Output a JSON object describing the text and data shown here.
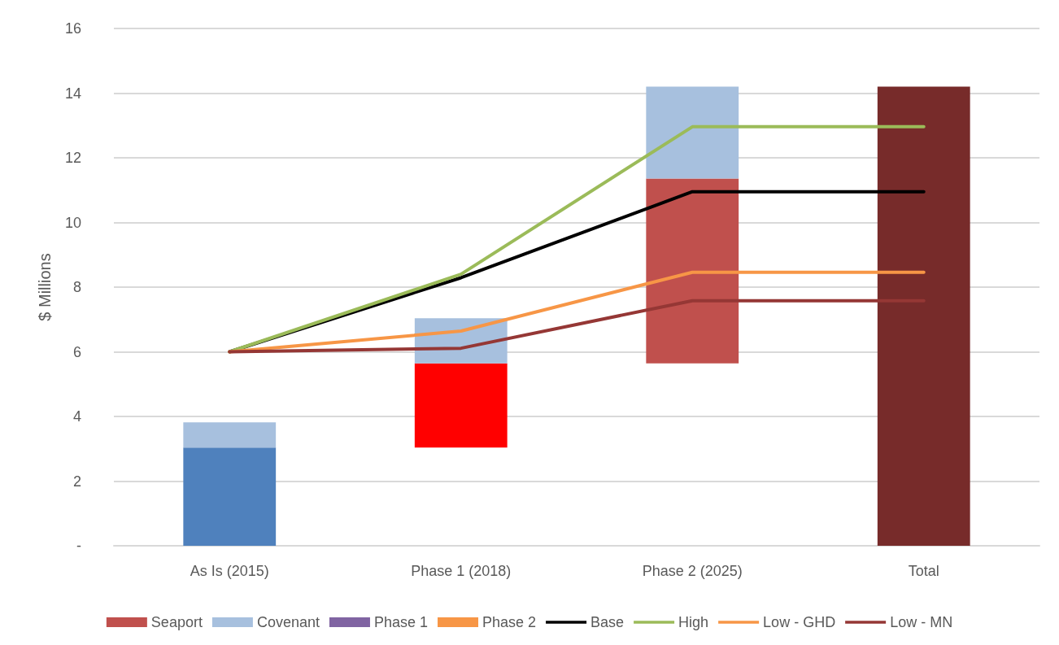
{
  "chart_data": {
    "type": "bar",
    "ylabel": "$ Millions",
    "categories": [
      "As Is (2015)",
      "Phase 1 (2018)",
      "Phase 2 (2025)",
      "Total"
    ],
    "ylim": [
      0,
      16
    ],
    "yticks": [
      {
        "value": 0,
        "label": "-"
      },
      2,
      4,
      6,
      8,
      10,
      12,
      14,
      16
    ],
    "grid": "y",
    "legend": "bottom",
    "marker": "none",
    "line_style": "solid",
    "series": [
      {
        "name": "Seaport",
        "type": "bar",
        "color": "#c0504d",
        "colors": [
          "#4f81bd",
          "#ff0000",
          "#c0504d",
          "#772b2a"
        ],
        "base": [
          0,
          3.04,
          5.64,
          0
        ],
        "values": [
          3.04,
          2.6,
          5.72,
          14.2
        ]
      },
      {
        "name": "Covenant",
        "type": "bar",
        "color": "#a7c0de",
        "base": [
          3.04,
          5.64,
          11.36,
          null
        ],
        "values": [
          0.78,
          1.4,
          2.84,
          null
        ]
      },
      {
        "name": "Phase 1",
        "type": "bar",
        "color": "#8064a2",
        "values": [
          null,
          null,
          null,
          null
        ]
      },
      {
        "name": "Phase 2",
        "type": "bar",
        "color": "#f79646",
        "values": [
          null,
          null,
          null,
          null
        ]
      },
      {
        "name": "Base",
        "type": "line",
        "color": "#000000",
        "values": [
          6,
          8.29,
          10.95,
          10.95
        ]
      },
      {
        "name": "High",
        "type": "line",
        "color": "#9bbb59",
        "values": [
          6,
          8.4,
          12.96,
          12.96
        ]
      },
      {
        "name": "Low - GHD",
        "type": "line",
        "color": "#f79646",
        "values": [
          6,
          6.64,
          8.46,
          8.46
        ]
      },
      {
        "name": "Low - MN",
        "type": "line",
        "color": "#953735",
        "values": [
          6,
          6.11,
          7.58,
          7.58
        ]
      }
    ]
  }
}
